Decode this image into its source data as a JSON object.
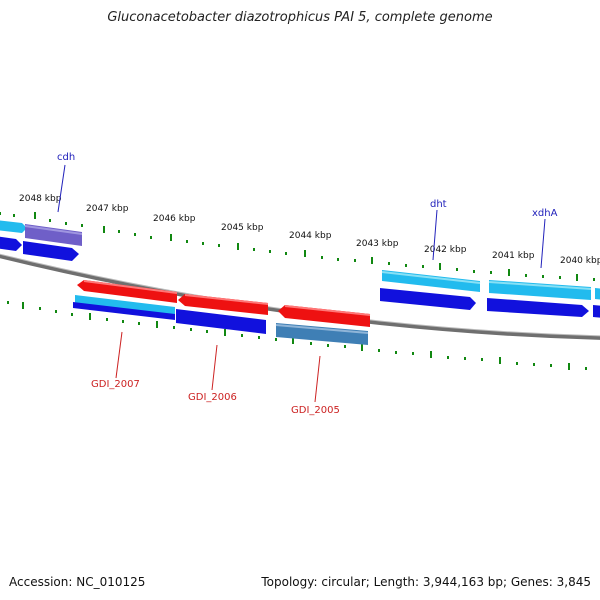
{
  "title": "Gluconacetobacter diazotrophicus PAI 5, complete genome",
  "accession": "Accession: NC_010125",
  "summary": "Topology: circular; Length: 3,944,163 bp; Genes: 3,845",
  "ruler_labels": [
    "2048 kbp",
    "2047 kbp",
    "2046 kbp",
    "2045 kbp",
    "2044 kbp",
    "2043 kbp",
    "2042 kbp",
    "2041 kbp",
    "2040 kbp"
  ],
  "gene_labels_top": [
    "cdh",
    "dht",
    "xdhA"
  ],
  "gene_labels_bottom": [
    "GDI_2007",
    "GDI_2006",
    "GDI_2005"
  ],
  "colors": {
    "forward_gene": "#1111dd",
    "forward_gene_light": "#22bbee",
    "reverse_gene": "#ee1111",
    "cdh_gene": "#6f5fc8",
    "gdi2005_gene": "#3f7fb5",
    "backbone": "#777777",
    "tick": "#118811",
    "label_top": "#2222bb",
    "label_bottom": "#cc2222"
  }
}
